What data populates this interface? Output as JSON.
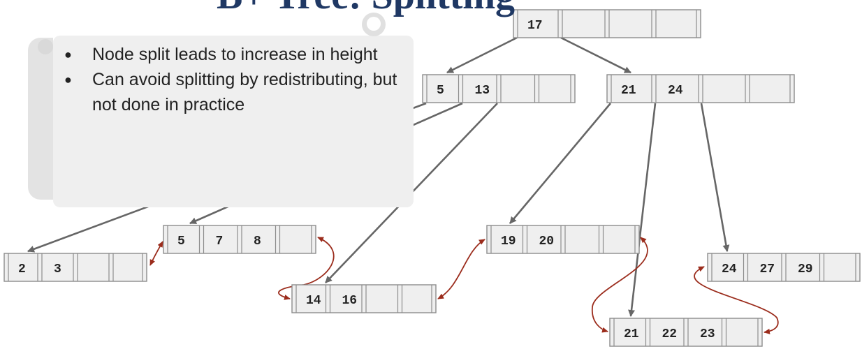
{
  "title": "B+ Tree: Splitting",
  "callout": {
    "bullets": [
      "Node split leads to increase in height",
      "Can avoid splitting by redistributing, but not done in practice"
    ]
  },
  "colors": {
    "node_fill": "#efefef",
    "node_border": "#8c8c8c",
    "pointer_arrow": "#666666",
    "sibling_arrow": "#9b2c1c",
    "title": "#1f3864",
    "callout_bg": "#efefef"
  },
  "tree": {
    "root": {
      "keys": [
        "17",
        "",
        "",
        ""
      ]
    },
    "internal": [
      {
        "keys": [
          "5",
          "13",
          "",
          ""
        ]
      },
      {
        "keys": [
          "21",
          "24",
          "",
          ""
        ]
      }
    ],
    "leaves": [
      {
        "keys": [
          "2",
          "3",
          "",
          ""
        ]
      },
      {
        "keys": [
          "5",
          "7",
          "8",
          ""
        ]
      },
      {
        "keys": [
          "14",
          "16",
          "",
          ""
        ]
      },
      {
        "keys": [
          "19",
          "20",
          "",
          ""
        ]
      },
      {
        "keys": [
          "21",
          "22",
          "23",
          ""
        ]
      },
      {
        "keys": [
          "24",
          "27",
          "29",
          ""
        ]
      }
    ]
  }
}
